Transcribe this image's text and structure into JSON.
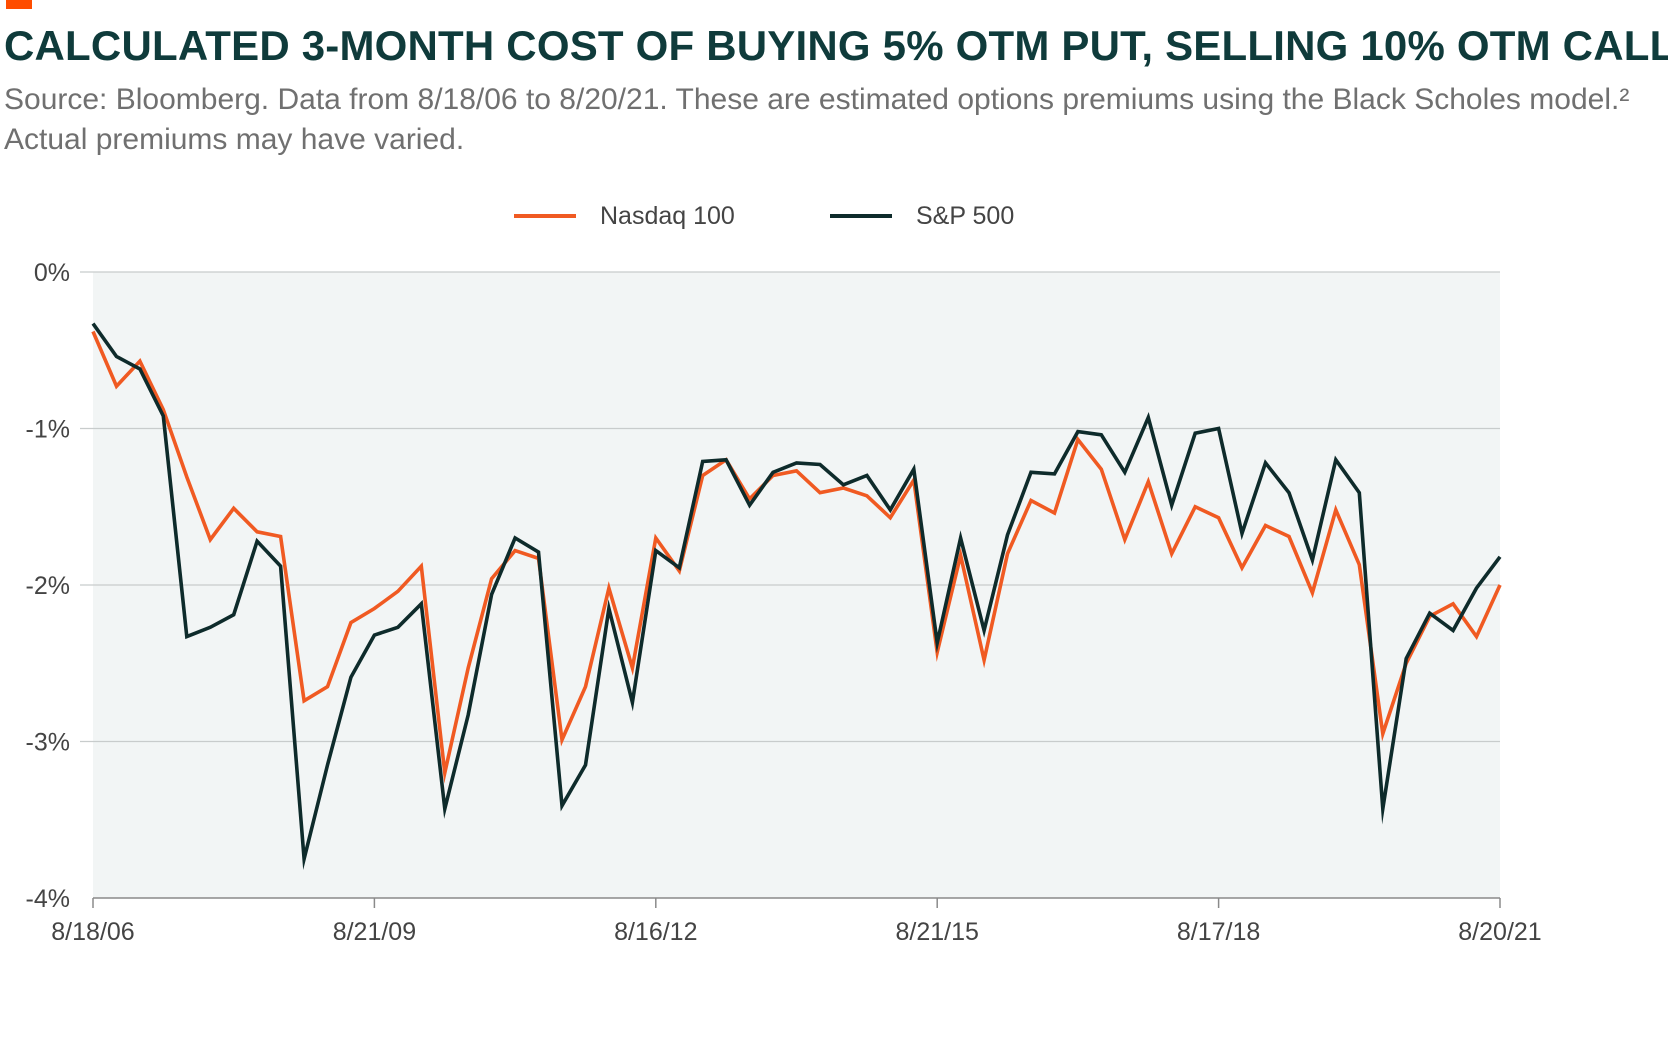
{
  "title": "CALCULATED 3-MONTH COST OF BUYING 5% OTM PUT, SELLING 10% OTM CALL",
  "subtitle": "Source: Bloomberg. Data from 8/18/06 to 8/20/21. These are estimated options premiums using the Black Scholes model.² Actual premiums may have varied.",
  "colors": {
    "accent": "#ff4d00",
    "nasdaq": "#f05a22",
    "sp500": "#0e2b2b",
    "plot_bg": "#f2f5f5",
    "grid": "#c8cccc"
  },
  "chart_data": {
    "type": "line",
    "title": "CALCULATED 3-MONTH COST OF BUYING 5% OTM PUT, SELLING 10% OTM CALL",
    "xlabel": "",
    "ylabel": "",
    "ylim": [
      -4,
      0
    ],
    "y_ticks": [
      0,
      -1,
      -2,
      -3,
      -4
    ],
    "y_tick_labels": [
      "0%",
      "-1%",
      "-2%",
      "-3%",
      "-4%"
    ],
    "x_tick_labels": [
      "8/18/06",
      "8/21/09",
      "8/16/12",
      "8/21/15",
      "8/17/18",
      "8/20/21"
    ],
    "x_tick_index": [
      0,
      12,
      24,
      36,
      48,
      60
    ],
    "grid": true,
    "legend_position": "top-center",
    "series": [
      {
        "name": "Nasdaq 100",
        "values": [
          -0.38,
          -0.73,
          -0.57,
          -0.88,
          -1.31,
          -1.71,
          -1.51,
          -1.66,
          -1.69,
          -2.74,
          -2.65,
          -2.24,
          -2.15,
          -2.04,
          -1.88,
          -3.2,
          -2.53,
          -1.96,
          -1.78,
          -1.83,
          -2.99,
          -2.65,
          -2.02,
          -2.53,
          -1.7,
          -1.91,
          -1.3,
          -1.2,
          -1.45,
          -1.3,
          -1.27,
          -1.41,
          -1.38,
          -1.43,
          -1.57,
          -1.33,
          -2.43,
          -1.81,
          -2.48,
          -1.8,
          -1.46,
          -1.54,
          -1.07,
          -1.26,
          -1.71,
          -1.34,
          -1.8,
          -1.5,
          -1.57,
          -1.89,
          -1.62,
          -1.69,
          -2.05,
          -1.52,
          -1.87,
          -2.95,
          -2.5,
          -2.2,
          -2.12,
          -2.33,
          -2.0
        ]
      },
      {
        "name": "S&P 500",
        "values": [
          -0.33,
          -0.54,
          -0.62,
          -0.92,
          -2.33,
          -2.27,
          -2.19,
          -1.72,
          -1.88,
          -3.75,
          -3.15,
          -2.59,
          -2.32,
          -2.27,
          -2.12,
          -3.43,
          -2.83,
          -2.06,
          -1.7,
          -1.79,
          -3.41,
          -3.15,
          -2.15,
          -2.75,
          -1.78,
          -1.89,
          -1.21,
          -1.2,
          -1.49,
          -1.28,
          -1.22,
          -1.23,
          -1.36,
          -1.3,
          -1.52,
          -1.26,
          -2.37,
          -1.7,
          -2.29,
          -1.68,
          -1.28,
          -1.29,
          -1.02,
          -1.04,
          -1.28,
          -0.93,
          -1.49,
          -1.03,
          -1.0,
          -1.67,
          -1.22,
          -1.41,
          -1.84,
          -1.2,
          -1.41,
          -3.43,
          -2.47,
          -2.18,
          -2.29,
          -2.02,
          -1.82
        ]
      }
    ]
  }
}
